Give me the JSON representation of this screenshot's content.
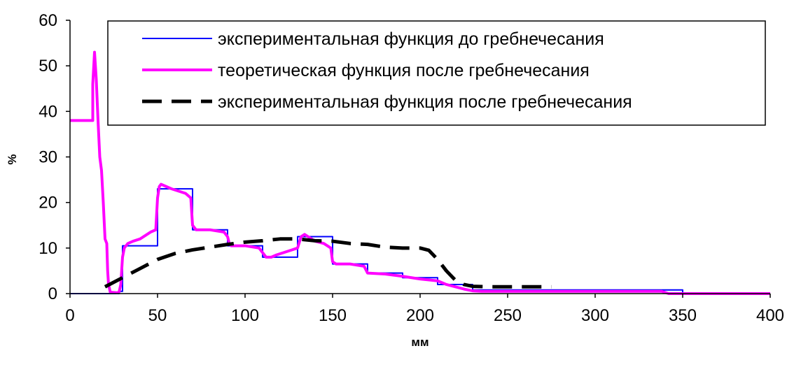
{
  "chart_data": {
    "type": "line",
    "xlabel": "мм",
    "ylabel": "%",
    "xlim": [
      0,
      400
    ],
    "ylim": [
      0,
      60
    ],
    "xticks": [
      0,
      50,
      100,
      150,
      200,
      250,
      300,
      350,
      400
    ],
    "yticks": [
      0,
      10,
      20,
      30,
      40,
      50,
      60
    ],
    "grid": false,
    "legend_position": "top-right",
    "series": [
      {
        "name": "экспериментальная функция до гребнечесания",
        "color": "#0000ff",
        "style": "solid",
        "points": [
          [
            0,
            0
          ],
          [
            28,
            0
          ],
          [
            28,
            0.5
          ],
          [
            30,
            0.5
          ],
          [
            30,
            10.5
          ],
          [
            50,
            10.5
          ],
          [
            50,
            23
          ],
          [
            70,
            23
          ],
          [
            70,
            14
          ],
          [
            90,
            14
          ],
          [
            90,
            10.5
          ],
          [
            110,
            10.5
          ],
          [
            110,
            8
          ],
          [
            130,
            8
          ],
          [
            130,
            12.5
          ],
          [
            150,
            12.5
          ],
          [
            150,
            6.5
          ],
          [
            170,
            6.5
          ],
          [
            170,
            4.5
          ],
          [
            190,
            4.5
          ],
          [
            190,
            3.5
          ],
          [
            210,
            3.5
          ],
          [
            210,
            2
          ],
          [
            230,
            2
          ],
          [
            230,
            0.8
          ],
          [
            350,
            0.8
          ],
          [
            350,
            0
          ],
          [
            400,
            0
          ]
        ]
      },
      {
        "name": "теоретическая функция после гребнечесания",
        "color": "#ff00ff",
        "style": "solid",
        "points": [
          [
            0,
            38
          ],
          [
            13,
            38
          ],
          [
            13,
            46
          ],
          [
            14,
            53
          ],
          [
            15,
            47
          ],
          [
            16,
            38
          ],
          [
            17,
            30
          ],
          [
            18,
            27
          ],
          [
            19,
            20
          ],
          [
            20,
            12
          ],
          [
            21,
            11
          ],
          [
            21.5,
            5
          ],
          [
            22,
            2
          ],
          [
            23,
            0.3
          ],
          [
            27,
            0.2
          ],
          [
            28,
            0.3
          ],
          [
            29,
            2
          ],
          [
            30,
            8
          ],
          [
            31,
            10
          ],
          [
            33,
            11
          ],
          [
            36,
            11.5
          ],
          [
            40,
            12
          ],
          [
            44,
            13
          ],
          [
            46,
            13.5
          ],
          [
            49,
            14
          ],
          [
            50,
            21
          ],
          [
            51,
            23.5
          ],
          [
            52,
            24
          ],
          [
            55,
            23.5
          ],
          [
            58,
            23
          ],
          [
            62,
            22.5
          ],
          [
            66,
            22
          ],
          [
            69,
            21
          ],
          [
            70,
            15
          ],
          [
            72,
            14
          ],
          [
            80,
            14
          ],
          [
            88,
            13.5
          ],
          [
            90,
            12.5
          ],
          [
            91,
            11
          ],
          [
            92,
            10.5
          ],
          [
            100,
            10.5
          ],
          [
            108,
            10
          ],
          [
            110,
            9
          ],
          [
            112,
            8
          ],
          [
            115,
            8
          ],
          [
            118,
            8.5
          ],
          [
            122,
            9
          ],
          [
            126,
            9.5
          ],
          [
            130,
            10
          ],
          [
            132,
            12.5
          ],
          [
            134,
            13
          ],
          [
            136,
            12.5
          ],
          [
            140,
            11.5
          ],
          [
            145,
            11
          ],
          [
            149,
            10
          ],
          [
            150,
            7
          ],
          [
            152,
            6.5
          ],
          [
            160,
            6.5
          ],
          [
            168,
            6
          ],
          [
            170,
            4.5
          ],
          [
            180,
            4.3
          ],
          [
            190,
            3.8
          ],
          [
            200,
            3.2
          ],
          [
            210,
            2.8
          ],
          [
            215,
            2
          ],
          [
            220,
            1.5
          ],
          [
            225,
            1
          ],
          [
            230,
            0.6
          ],
          [
            235,
            0.5
          ],
          [
            300,
            0.5
          ],
          [
            338,
            0.5
          ],
          [
            342,
            0
          ],
          [
            400,
            0
          ]
        ]
      },
      {
        "name": "экспериментальная функция после гребнечесания",
        "color": "#000000",
        "style": "dashed",
        "points": [
          [
            20,
            1.5
          ],
          [
            30,
            3.5
          ],
          [
            40,
            5.5
          ],
          [
            50,
            7.5
          ],
          [
            60,
            8.8
          ],
          [
            70,
            9.6
          ],
          [
            80,
            10.2
          ],
          [
            90,
            10.8
          ],
          [
            100,
            11.3
          ],
          [
            110,
            11.6
          ],
          [
            120,
            12
          ],
          [
            130,
            12
          ],
          [
            140,
            11.6
          ],
          [
            150,
            11.5
          ],
          [
            160,
            11
          ],
          [
            170,
            10.8
          ],
          [
            180,
            10.2
          ],
          [
            190,
            10
          ],
          [
            200,
            10
          ],
          [
            205,
            9.5
          ],
          [
            210,
            7.5
          ],
          [
            215,
            5
          ],
          [
            220,
            3
          ],
          [
            225,
            2
          ],
          [
            230,
            1.6
          ],
          [
            240,
            1.5
          ],
          [
            260,
            1.5
          ],
          [
            275,
            1.5
          ]
        ]
      }
    ]
  }
}
